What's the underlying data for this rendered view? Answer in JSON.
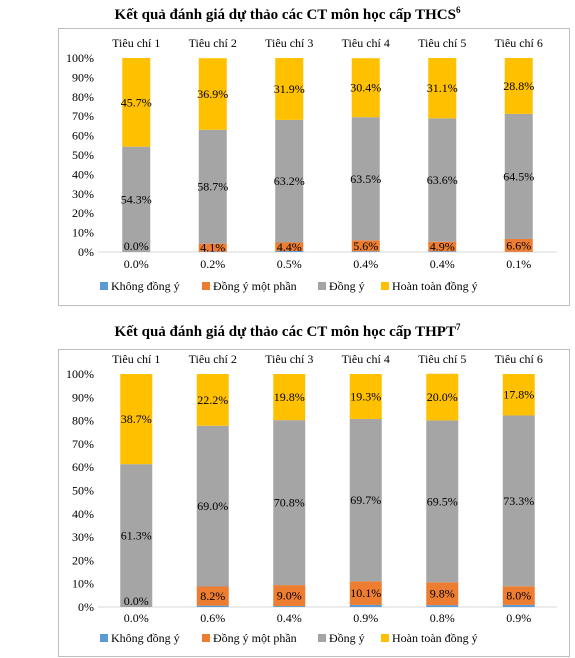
{
  "chart_data": [
    {
      "type": "bar",
      "stacked": true,
      "title": "Kết quả đánh giá dự thảo các CT môn học cấp THCS",
      "title_sup": "6",
      "categories": [
        "Tiêu chí 1",
        "Tiêu chí 2",
        "Tiêu chí 3",
        "Tiêu chí 4",
        "Tiêu chí 5",
        "Tiêu chí 6"
      ],
      "ylim": [
        0,
        100
      ],
      "yticks": [
        "0%",
        "10%",
        "20%",
        "30%",
        "40%",
        "50%",
        "60%",
        "70%",
        "80%",
        "90%",
        "100%"
      ],
      "legend_position": "bottom",
      "series": [
        {
          "name": "Không đồng ý",
          "color": "#5b9bd5",
          "values": [
            0.0,
            0.2,
            0.5,
            0.4,
            0.4,
            0.1
          ],
          "labels": [
            "0.0%",
            "0.2%",
            "0.5%",
            "0.4%",
            "0.4%",
            "0.1%"
          ]
        },
        {
          "name": "Đồng ý một phần",
          "color": "#ed7d31",
          "values": [
            0.0,
            4.1,
            4.4,
            5.6,
            4.9,
            6.6
          ],
          "labels": [
            "0.0%",
            "4.1%",
            "4.4%",
            "5.6%",
            "4.9%",
            "6.6%"
          ]
        },
        {
          "name": "Đồng ý",
          "color": "#a5a5a5",
          "values": [
            54.3,
            58.7,
            63.2,
            63.5,
            63.6,
            64.5
          ],
          "labels": [
            "54.3%",
            "58.7%",
            "63.2%",
            "63.5%",
            "63.6%",
            "64.5%"
          ]
        },
        {
          "name": "Hoàn toàn đồng ý",
          "color": "#ffc000",
          "values": [
            45.7,
            36.9,
            31.9,
            30.4,
            31.1,
            28.8
          ],
          "labels": [
            "45.7%",
            "36.9%",
            "31.9%",
            "30.4%",
            "31.1%",
            "28.8%"
          ]
        }
      ]
    },
    {
      "type": "bar",
      "stacked": true,
      "title": "Kết quả đánh giá dự thảo các CT môn học cấp THPT",
      "title_sup": "7",
      "categories": [
        "Tiêu chí 1",
        "Tiêu chí 2",
        "Tiêu chí 3",
        "Tiêu chí 4",
        "Tiêu chí 5",
        "Tiêu chí 6"
      ],
      "ylim": [
        0,
        100
      ],
      "yticks": [
        "0%",
        "10%",
        "20%",
        "30%",
        "40%",
        "50%",
        "60%",
        "70%",
        "80%",
        "90%",
        "100%"
      ],
      "legend_position": "bottom",
      "series": [
        {
          "name": "Không đồng ý",
          "color": "#5b9bd5",
          "values": [
            0.0,
            0.6,
            0.4,
            0.9,
            0.8,
            0.9
          ],
          "labels": [
            "0.0%",
            "0.6%",
            "0.4%",
            "0.9%",
            "0.8%",
            "0.9%"
          ]
        },
        {
          "name": "Đồng ý một phần",
          "color": "#ed7d31",
          "values": [
            0.0,
            8.2,
            9.0,
            10.1,
            9.8,
            8.0
          ],
          "labels": [
            "0.0%",
            "8.2%",
            "9.0%",
            "10.1%",
            "9.8%",
            "8.0%"
          ]
        },
        {
          "name": "Đồng ý",
          "color": "#a5a5a5",
          "values": [
            61.3,
            69.0,
            70.8,
            69.7,
            69.5,
            73.3
          ],
          "labels": [
            "61.3%",
            "69.0%",
            "70.8%",
            "69.7%",
            "69.5%",
            "73.3%"
          ]
        },
        {
          "name": "Hoàn toàn đồng ý",
          "color": "#ffc000",
          "values": [
            38.7,
            22.2,
            19.8,
            19.3,
            20.0,
            17.8
          ],
          "labels": [
            "38.7%",
            "22.2%",
            "19.8%",
            "19.3%",
            "20.0%",
            "17.8%"
          ]
        }
      ]
    }
  ]
}
